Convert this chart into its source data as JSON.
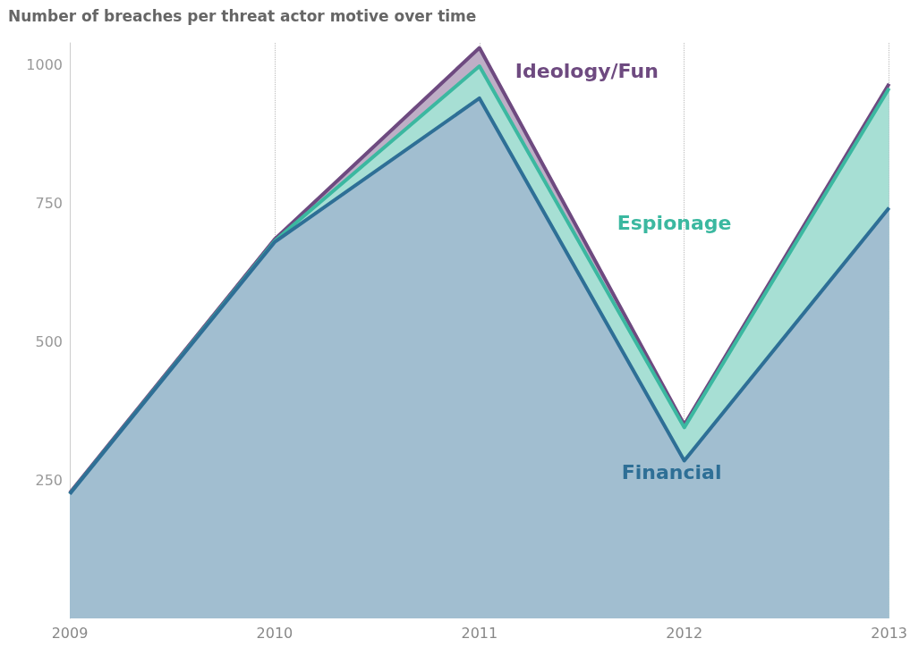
{
  "chart_data": {
    "type": "area",
    "title": "Number of breaches per threat actor motive over time",
    "stacked": true,
    "x": [
      2009,
      2010,
      2011,
      2012,
      2013
    ],
    "series": [
      {
        "name": "Financial",
        "color": "#2e6f96",
        "values": [
          225,
          680,
          940,
          285,
          742
        ]
      },
      {
        "name": "Espionage",
        "color": "#3bb8a0",
        "values": [
          0,
          2,
          58,
          60,
          216
        ]
      },
      {
        "name": "Ideology/Fun",
        "color": "#6e4a80",
        "values": [
          2,
          3,
          33,
          5,
          8
        ]
      }
    ],
    "xlim": [
      2009,
      2013
    ],
    "xticks": [
      2009,
      2010,
      2011,
      2012,
      2013
    ],
    "ylim": [
      0,
      1040
    ],
    "yticks": [
      250,
      500,
      750,
      1000
    ],
    "grid": "x",
    "legend": false,
    "marker": "none",
    "line_style": "solid"
  }
}
